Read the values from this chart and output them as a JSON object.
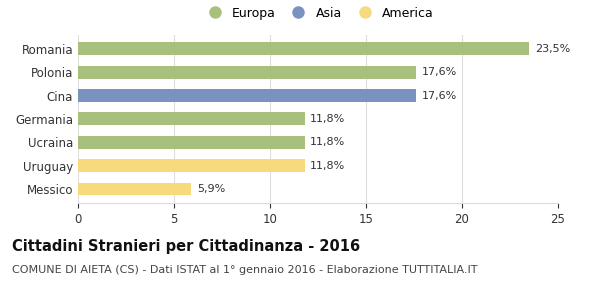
{
  "categories": [
    "Romania",
    "Polonia",
    "Cina",
    "Germania",
    "Ucraina",
    "Uruguay",
    "Messico"
  ],
  "values": [
    23.5,
    17.6,
    17.6,
    11.8,
    11.8,
    11.8,
    5.9
  ],
  "labels": [
    "23,5%",
    "17,6%",
    "17,6%",
    "11,8%",
    "11,8%",
    "11,8%",
    "5,9%"
  ],
  "colors": [
    "#a8c07e",
    "#a8c07e",
    "#7b91c0",
    "#a8c07e",
    "#a8c07e",
    "#f7d97e",
    "#f7d97e"
  ],
  "legend_items": [
    {
      "label": "Europa",
      "color": "#a8c07e"
    },
    {
      "label": "Asia",
      "color": "#7b91c0"
    },
    {
      "label": "America",
      "color": "#f7d97e"
    }
  ],
  "xlim": [
    0,
    25
  ],
  "xticks": [
    0,
    5,
    10,
    15,
    20,
    25
  ],
  "title": "Cittadini Stranieri per Cittadinanza - 2016",
  "subtitle": "COMUNE DI AIETA (CS) - Dati ISTAT al 1° gennaio 2016 - Elaborazione TUTTITALIA.IT",
  "title_fontsize": 10.5,
  "subtitle_fontsize": 8.0,
  "bar_height": 0.55,
  "grid_color": "#dddddd",
  "background_color": "#ffffff",
  "label_fontsize": 8.0,
  "tick_fontsize": 8.5,
  "ytick_fontsize": 8.5
}
